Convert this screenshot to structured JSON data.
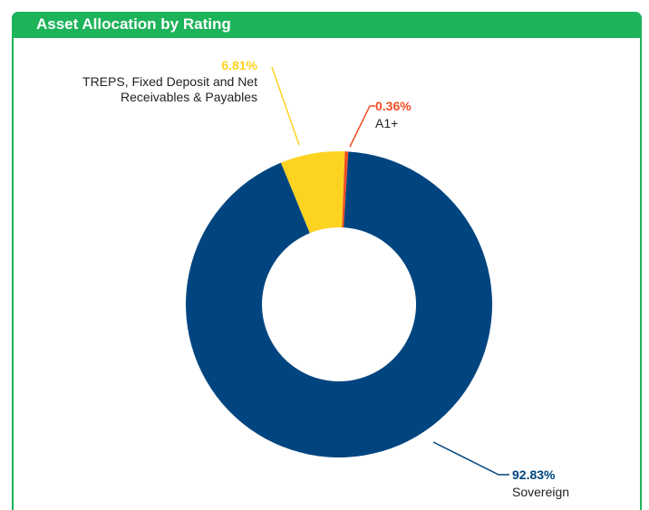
{
  "chart_data": {
    "type": "donut",
    "title": "Asset Allocation by Rating",
    "categories": [
      "TREPS, Fixed Deposit and Net Receivables & Payables",
      "A1+",
      "Sovereign"
    ],
    "values": [
      6.81,
      0.36,
      92.83
    ],
    "value_labels": [
      "6.81%",
      "0.36%",
      "92.83%"
    ],
    "colors": [
      "#fdd321",
      "#f04e23",
      "#00457f"
    ]
  }
}
